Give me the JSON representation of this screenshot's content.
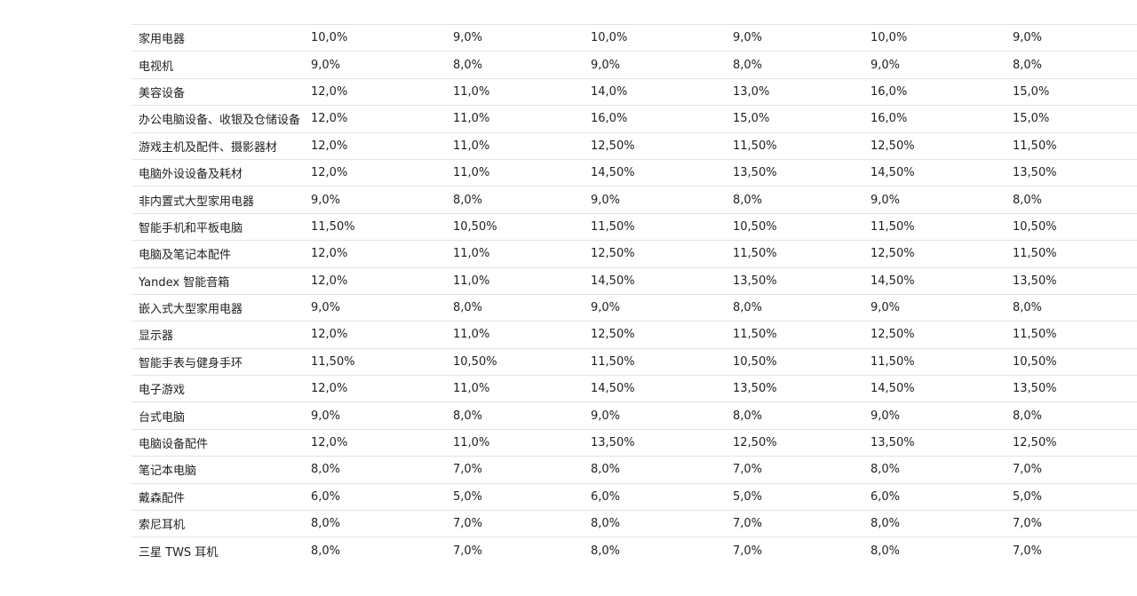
{
  "table": {
    "rows": [
      {
        "category": "家用电器",
        "values": [
          "10,0%",
          "9,0%",
          "10,0%",
          "9,0%",
          "10,0%",
          "9,0%"
        ]
      },
      {
        "category": "电视机",
        "values": [
          "9,0%",
          "8,0%",
          "9,0%",
          "8,0%",
          "9,0%",
          "8,0%"
        ]
      },
      {
        "category": "美容设备",
        "values": [
          "12,0%",
          "11,0%",
          "14,0%",
          "13,0%",
          "16,0%",
          "15,0%"
        ]
      },
      {
        "category": "办公电脑设备、收银及仓储设备",
        "values": [
          "12,0%",
          "11,0%",
          "16,0%",
          "15,0%",
          "16,0%",
          "15,0%"
        ]
      },
      {
        "category": "游戏主机及配件、摄影器材",
        "values": [
          "12,0%",
          "11,0%",
          "12,50%",
          "11,50%",
          "12,50%",
          "11,50%"
        ]
      },
      {
        "category": "电脑外设设备及耗材",
        "values": [
          "12,0%",
          "11,0%",
          "14,50%",
          "13,50%",
          "14,50%",
          "13,50%"
        ]
      },
      {
        "category": "非内置式大型家用电器",
        "values": [
          "9,0%",
          "8,0%",
          "9,0%",
          "8,0%",
          "9,0%",
          "8,0%"
        ]
      },
      {
        "category": "智能手机和平板电脑",
        "values": [
          "11,50%",
          "10,50%",
          "11,50%",
          "10,50%",
          "11,50%",
          "10,50%"
        ]
      },
      {
        "category": "电脑及笔记本配件",
        "values": [
          "12,0%",
          "11,0%",
          "12,50%",
          "11,50%",
          "12,50%",
          "11,50%"
        ]
      },
      {
        "category": "Yandex 智能音箱",
        "values": [
          "12,0%",
          "11,0%",
          "14,50%",
          "13,50%",
          "14,50%",
          "13,50%"
        ]
      },
      {
        "category": "嵌入式大型家用电器",
        "values": [
          "9,0%",
          "8,0%",
          "9,0%",
          "8,0%",
          "9,0%",
          "8,0%"
        ]
      },
      {
        "category": "显示器",
        "values": [
          "12,0%",
          "11,0%",
          "12,50%",
          "11,50%",
          "12,50%",
          "11,50%"
        ]
      },
      {
        "category": "智能手表与健身手环",
        "values": [
          "11,50%",
          "10,50%",
          "11,50%",
          "10,50%",
          "11,50%",
          "10,50%"
        ]
      },
      {
        "category": "电子游戏",
        "values": [
          "12,0%",
          "11,0%",
          "14,50%",
          "13,50%",
          "14,50%",
          "13,50%"
        ]
      },
      {
        "category": "台式电脑",
        "values": [
          "9,0%",
          "8,0%",
          "9,0%",
          "8,0%",
          "9,0%",
          "8,0%"
        ]
      },
      {
        "category": "电脑设备配件",
        "values": [
          "12,0%",
          "11,0%",
          "13,50%",
          "12,50%",
          "13,50%",
          "12,50%"
        ]
      },
      {
        "category": "笔记本电脑",
        "values": [
          "8,0%",
          "7,0%",
          "8,0%",
          "7,0%",
          "8,0%",
          "7,0%"
        ]
      },
      {
        "category": "戴森配件",
        "values": [
          "6,0%",
          "5,0%",
          "6,0%",
          "5,0%",
          "6,0%",
          "5,0%"
        ]
      },
      {
        "category": "索尼耳机",
        "values": [
          "8,0%",
          "7,0%",
          "8,0%",
          "7,0%",
          "8,0%",
          "7,0%"
        ]
      },
      {
        "category": "三星 TWS 耳机",
        "values": [
          "8,0%",
          "7,0%",
          "8,0%",
          "7,0%",
          "8,0%",
          "7,0%"
        ]
      }
    ]
  }
}
